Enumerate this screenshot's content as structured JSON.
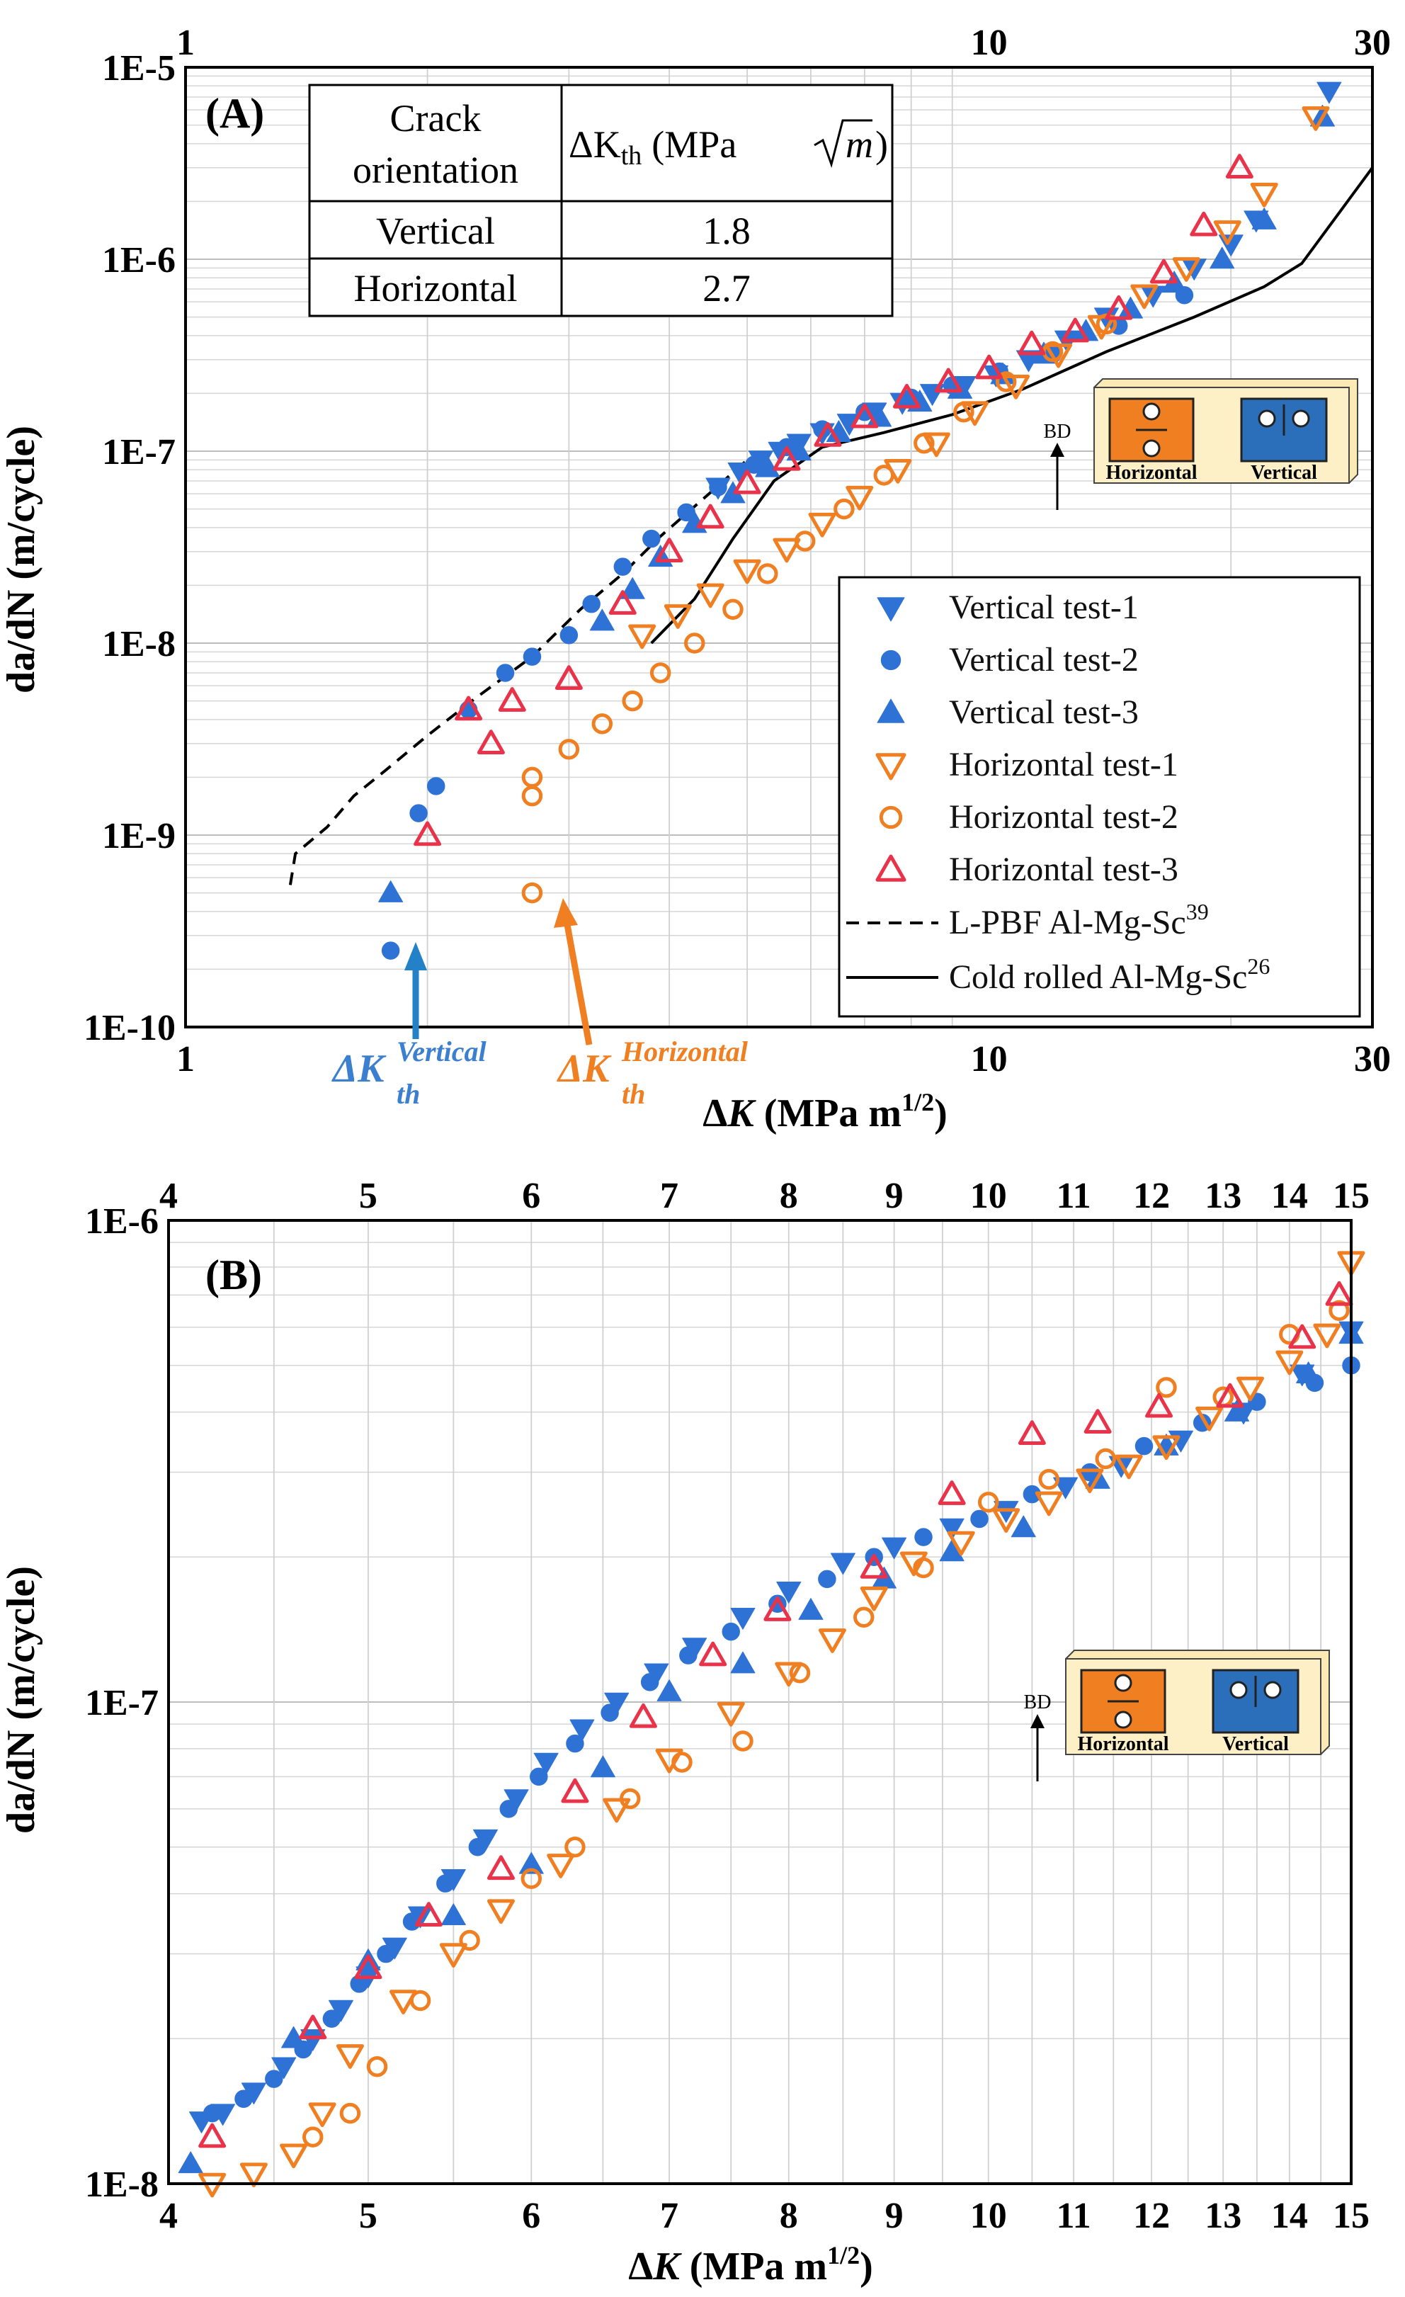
{
  "chart_data": [
    {
      "type": "scatter",
      "panel_label": "(A)",
      "x_scale": "log",
      "y_scale": "log",
      "xlim": [
        1,
        30
      ],
      "ylim": [
        1e-10,
        1e-05
      ],
      "x_ticks": [
        "1",
        "10",
        "30"
      ],
      "x_ticks_top": [
        "1",
        "10",
        "30"
      ],
      "y_ticks": [
        "1E-10",
        "1E-9",
        "1E-8",
        "1E-7",
        "1E-6",
        "1E-5"
      ],
      "xlabel": "ΔK (MPa m1/2)",
      "xlabel_main": "Δ",
      "xlabel_k": "K",
      "xlabel_units": " (MPa m",
      "xlabel_exp": "1/2",
      "xlabel_close": ")",
      "ylabel": "da/dN (m/cycle)",
      "grid": true,
      "legend_position": "bottom-right",
      "table": {
        "header": [
          "Crack orientation",
          "ΔKth (MPa √m)"
        ],
        "header_lines": [
          "Crack",
          "orientation"
        ],
        "header_unit": "(MPa",
        "header_delta": "ΔK",
        "header_sub": "th",
        "header_sqrt": "m",
        "rows": [
          [
            "Vertical",
            "1.8"
          ],
          [
            "Horizontal",
            "2.7"
          ]
        ]
      },
      "annotations": {
        "vertical_threshold": {
          "main": "ΔK",
          "sup": "Vertical",
          "sub": "th",
          "x": 1.8,
          "y": 2.5e-10
        },
        "horizontal_threshold": {
          "main": "ΔK",
          "sup": "Horizontal",
          "sub": "th",
          "x": 2.7,
          "y": 5e-10
        }
      },
      "inset": {
        "label_bd": "BD",
        "label_horizontal": "Horizontal",
        "label_vertical": "Vertical"
      },
      "series": [
        {
          "name": "Vertical test-1",
          "marker": "triangle-down",
          "color": "#2f72d6",
          "filled": true,
          "x": [
            4.6,
            4.9,
            5.2,
            5.5,
            5.8,
            6.2,
            6.7,
            7.2,
            7.8,
            8.5,
            9.3,
            10.2,
            11.2,
            12.5,
            14.0,
            16.0,
            18.0,
            20.0,
            21.5,
            26.5
          ],
          "y": [
            6.5e-08,
            7.8e-08,
            9e-08,
            1e-07,
            1.1e-07,
            1.25e-07,
            1.4e-07,
            1.6e-07,
            1.8e-07,
            2e-07,
            2.2e-07,
            2.5e-07,
            3e-07,
            3.8e-07,
            5e-07,
            6.5e-07,
            9e-07,
            1.2e-06,
            1.6e-06,
            7.5e-06
          ]
        },
        {
          "name": "Vertical test-2",
          "marker": "circle",
          "color": "#2f72d6",
          "filled": true,
          "x": [
            1.8,
            1.95,
            2.05,
            2.25,
            2.5,
            2.7,
            3.0,
            3.2,
            3.5,
            3.8,
            4.2,
            4.6,
            5.1,
            5.6,
            6.2,
            7.0,
            8.0,
            9.0,
            10.3,
            12.0,
            14.5,
            17.5
          ],
          "y": [
            2.5e-10,
            1.3e-09,
            1.8e-09,
            4.5e-09,
            7e-09,
            8.5e-09,
            1.1e-08,
            1.6e-08,
            2.5e-08,
            3.5e-08,
            4.8e-08,
            6.5e-08,
            8.5e-08,
            1.05e-07,
            1.3e-07,
            1.6e-07,
            1.9e-07,
            2.2e-07,
            2.6e-07,
            3.2e-07,
            4.5e-07,
            6.5e-07
          ]
        },
        {
          "name": "Vertical test-3",
          "marker": "triangle-up",
          "color": "#2f72d6",
          "filled": true,
          "x": [
            1.8,
            3.3,
            3.6,
            3.9,
            4.3,
            4.8,
            5.3,
            5.8,
            6.5,
            7.3,
            8.2,
            9.2,
            10.4,
            11.7,
            13.2,
            15.0,
            17.0,
            19.5,
            22.0,
            26.0
          ],
          "y": [
            5e-10,
            1.3e-08,
            1.9e-08,
            2.8e-08,
            4.2e-08,
            6e-08,
            8.2e-08,
            1e-07,
            1.25e-07,
            1.5e-07,
            1.8e-07,
            2.1e-07,
            2.5e-07,
            3.2e-07,
            4.2e-07,
            5.5e-07,
            7.5e-07,
            1e-06,
            1.6e-06,
            5.5e-06
          ]
        },
        {
          "name": "Horizontal test-1",
          "marker": "triangle-down",
          "color": "#f07f22",
          "filled": false,
          "x": [
            3.7,
            4.1,
            4.5,
            5.0,
            5.6,
            6.2,
            6.9,
            7.7,
            8.6,
            9.6,
            10.8,
            12.2,
            13.8,
            15.6,
            17.6,
            19.8,
            22.0,
            25.5
          ],
          "y": [
            1.1e-08,
            1.4e-08,
            1.8e-08,
            2.4e-08,
            3.1e-08,
            4.2e-08,
            5.8e-08,
            8e-08,
            1.1e-07,
            1.6e-07,
            2.2e-07,
            3.2e-07,
            4.5e-07,
            6.5e-07,
            9e-07,
            1.4e-06,
            2.2e-06,
            5.5e-06
          ]
        },
        {
          "name": "Horizontal test-2",
          "marker": "circle",
          "color": "#f07f22",
          "filled": false,
          "x": [
            2.7,
            2.7,
            2.7,
            3.0,
            3.3,
            3.6,
            3.9,
            4.3,
            4.8,
            5.3,
            5.9,
            6.6,
            7.4,
            8.3,
            9.3,
            10.5,
            12.0,
            14.0
          ],
          "y": [
            5e-10,
            1.6e-09,
            2e-09,
            2.8e-09,
            3.8e-09,
            5e-09,
            7e-09,
            1e-08,
            1.5e-08,
            2.3e-08,
            3.4e-08,
            5e-08,
            7.5e-08,
            1.1e-07,
            1.6e-07,
            2.3e-07,
            3.3e-07,
            4.6e-07
          ]
        },
        {
          "name": "Horizontal test-3",
          "marker": "triangle-up",
          "color": "#e8334a",
          "filled": false,
          "x": [
            2.0,
            2.4,
            2.25,
            2.55,
            3.0,
            3.5,
            4.0,
            4.5,
            5.0,
            5.6,
            6.3,
            7.0,
            7.9,
            8.9,
            10.0,
            11.3,
            12.8,
            14.5,
            16.5,
            18.5,
            20.5
          ],
          "y": [
            1e-09,
            3e-09,
            4.5e-09,
            5e-09,
            6.5e-09,
            1.6e-08,
            3e-08,
            4.5e-08,
            6.8e-08,
            9e-08,
            1.2e-07,
            1.5e-07,
            1.9e-07,
            2.3e-07,
            2.7e-07,
            3.6e-07,
            4.2e-07,
            5.5e-07,
            8.5e-07,
            1.5e-06,
            3e-06
          ]
        },
        {
          "name": "L-PBF Al-Mg-Sc39",
          "name_main": "L-PBF Al-Mg-Sc",
          "name_sup": "39",
          "style": "dashed",
          "color": "#000000",
          "x": [
            1.35,
            1.37,
            1.5,
            1.62,
            1.78,
            2.0,
            2.3,
            2.7,
            3.1,
            3.5,
            3.9,
            4.4,
            5.0
          ],
          "y": [
            5.5e-10,
            8e-10,
            1.1e-09,
            1.6e-09,
            2.2e-09,
            3.3e-09,
            5.2e-09,
            8.5e-09,
            1.5e-08,
            2.3e-08,
            3.6e-08,
            5.6e-08,
            9e-08
          ]
        },
        {
          "name": "Cold rolled Al-Mg-Sc26",
          "name_main": "Cold rolled Al-Mg-Sc",
          "name_sup": "26",
          "style": "solid",
          "color": "#000000",
          "x": [
            3.8,
            4.3,
            4.8,
            5.4,
            6.2,
            7.4,
            9.0,
            11.0,
            14.0,
            18.0,
            22.0,
            24.5,
            30.0
          ],
          "y": [
            1e-08,
            1.7e-08,
            3.5e-08,
            7e-08,
            1.05e-07,
            1.25e-07,
            1.55e-07,
            2.1e-07,
            3.3e-07,
            5e-07,
            7.2e-07,
            9.5e-07,
            3e-06
          ]
        }
      ]
    },
    {
      "type": "scatter",
      "panel_label": "(B)",
      "x_scale": "log",
      "y_scale": "log",
      "xlim": [
        4,
        15
      ],
      "ylim": [
        1e-08,
        1e-06
      ],
      "x_ticks": [
        "4",
        "5",
        "6",
        "7",
        "8",
        "9",
        "10",
        "11",
        "12",
        "13",
        "14",
        "15"
      ],
      "x_ticks_top": [
        "4",
        "5",
        "6",
        "7",
        "8",
        "9",
        "10",
        "11",
        "12",
        "13",
        "14",
        "15"
      ],
      "y_ticks": [
        "1E-8",
        "1E-7",
        "1E-6"
      ],
      "xlabel": "ΔK (MPa m1/2)",
      "xlabel_main": "Δ",
      "xlabel_k": "K",
      "xlabel_units": " (MPa m",
      "xlabel_exp": "1/2",
      "xlabel_close": ")",
      "ylabel": "da/dN (m/cycle)",
      "grid": true,
      "inset": {
        "label_bd": "BD",
        "label_horizontal": "Horizontal",
        "label_vertical": "Vertical"
      },
      "series": [
        {
          "name": "Vertical test-1",
          "marker": "triangle-down",
          "color": "#2f72d6",
          "filled": true,
          "x": [
            4.15,
            4.25,
            4.4,
            4.55,
            4.7,
            4.85,
            5.0,
            5.15,
            5.3,
            5.5,
            5.7,
            5.9,
            6.1,
            6.35,
            6.6,
            6.9,
            7.2,
            7.6,
            8.0,
            8.5,
            9.0,
            9.6,
            10.2,
            10.9,
            11.6,
            12.4,
            13.3,
            14.2,
            15.0
          ],
          "y": [
            1.35e-08,
            1.4e-08,
            1.55e-08,
            1.75e-08,
            2e-08,
            2.3e-08,
            2.7e-08,
            3.1e-08,
            3.6e-08,
            4.3e-08,
            5.2e-08,
            6.3e-08,
            7.5e-08,
            8.8e-08,
            1e-07,
            1.15e-07,
            1.3e-07,
            1.5e-07,
            1.7e-07,
            1.95e-07,
            2.1e-07,
            2.3e-07,
            2.5e-07,
            2.8e-07,
            3.1e-07,
            3.5e-07,
            4e-07,
            4.8e-07,
            5.9e-07
          ]
        },
        {
          "name": "Vertical test-2",
          "marker": "circle",
          "color": "#2f72d6",
          "filled": true,
          "x": [
            4.2,
            4.35,
            4.5,
            4.65,
            4.8,
            4.95,
            5.1,
            5.25,
            5.45,
            5.65,
            5.85,
            6.05,
            6.3,
            6.55,
            6.85,
            7.15,
            7.5,
            7.9,
            8.35,
            8.8,
            9.3,
            9.9,
            10.5,
            11.2,
            11.9,
            12.7,
            13.5,
            14.4,
            15.0
          ],
          "y": [
            1.4e-08,
            1.5e-08,
            1.65e-08,
            1.9e-08,
            2.2e-08,
            2.6e-08,
            3e-08,
            3.5e-08,
            4.2e-08,
            5e-08,
            6e-08,
            7e-08,
            8.2e-08,
            9.5e-08,
            1.1e-07,
            1.25e-07,
            1.4e-07,
            1.6e-07,
            1.8e-07,
            2e-07,
            2.2e-07,
            2.4e-07,
            2.7e-07,
            3e-07,
            3.4e-07,
            3.8e-07,
            4.2e-07,
            4.6e-07,
            5e-07
          ]
        },
        {
          "name": "Vertical test-3",
          "marker": "triangle-up",
          "color": "#2f72d6",
          "filled": true,
          "x": [
            4.1,
            4.6,
            5.0,
            5.5,
            6.0,
            6.5,
            7.0,
            7.6,
            8.2,
            8.9,
            9.6,
            10.4,
            11.3,
            12.2,
            13.2,
            14.3,
            15.0
          ],
          "y": [
            1.1e-08,
            2e-08,
            2.9e-08,
            3.6e-08,
            4.6e-08,
            7.3e-08,
            1.05e-07,
            1.2e-07,
            1.55e-07,
            1.8e-07,
            2.05e-07,
            2.3e-07,
            2.9e-07,
            3.4e-07,
            4e-07,
            4.8e-07,
            5.8e-07
          ]
        },
        {
          "name": "Horizontal test-1",
          "marker": "triangle-down",
          "color": "#f07f22",
          "filled": false,
          "x": [
            4.2,
            4.4,
            4.6,
            4.75,
            4.9,
            5.2,
            5.5,
            5.8,
            6.2,
            6.6,
            7.0,
            7.5,
            8.0,
            8.4,
            8.8,
            9.2,
            9.7,
            10.2,
            10.7,
            11.2,
            11.7,
            12.2,
            12.8,
            13.4,
            14.0,
            14.6,
            15.0
          ],
          "y": [
            1e-08,
            1.05e-08,
            1.15e-08,
            1.4e-08,
            1.85e-08,
            2.4e-08,
            3e-08,
            3.7e-08,
            4.6e-08,
            6e-08,
            7.6e-08,
            9.5e-08,
            1.15e-07,
            1.35e-07,
            1.65e-07,
            1.95e-07,
            2.15e-07,
            2.4e-07,
            2.6e-07,
            2.9e-07,
            3.1e-07,
            3.4e-07,
            3.9e-07,
            4.5e-07,
            5.1e-07,
            5.8e-07,
            8.2e-07
          ]
        },
        {
          "name": "Horizontal test-2",
          "marker": "circle",
          "color": "#f07f22",
          "filled": false,
          "x": [
            4.7,
            4.9,
            5.05,
            5.3,
            5.6,
            6.0,
            6.3,
            6.7,
            7.1,
            7.6,
            8.1,
            8.7,
            9.3,
            10.0,
            10.7,
            11.4,
            12.2,
            13.0,
            14.0,
            14.8
          ],
          "y": [
            1.25e-08,
            1.4e-08,
            1.75e-08,
            2.4e-08,
            3.2e-08,
            4.3e-08,
            5e-08,
            6.3e-08,
            7.5e-08,
            8.3e-08,
            1.15e-07,
            1.5e-07,
            1.9e-07,
            2.6e-07,
            2.9e-07,
            3.2e-07,
            4.5e-07,
            4.3e-07,
            5.8e-07,
            6.5e-07
          ]
        },
        {
          "name": "Horizontal test-3",
          "marker": "triangle-up",
          "color": "#e8334a",
          "filled": false,
          "x": [
            4.2,
            4.7,
            5.0,
            5.35,
            5.8,
            6.3,
            6.8,
            7.35,
            7.9,
            8.8,
            9.6,
            10.5,
            11.3,
            12.1,
            13.1,
            14.2,
            14.8
          ],
          "y": [
            1.25e-08,
            2.1e-08,
            2.8e-08,
            3.6e-08,
            4.5e-08,
            6.5e-08,
            9.3e-08,
            1.25e-07,
            1.55e-07,
            1.9e-07,
            2.7e-07,
            3.6e-07,
            3.8e-07,
            4.1e-07,
            4.3e-07,
            5.7e-07,
            7e-07
          ]
        }
      ]
    }
  ]
}
